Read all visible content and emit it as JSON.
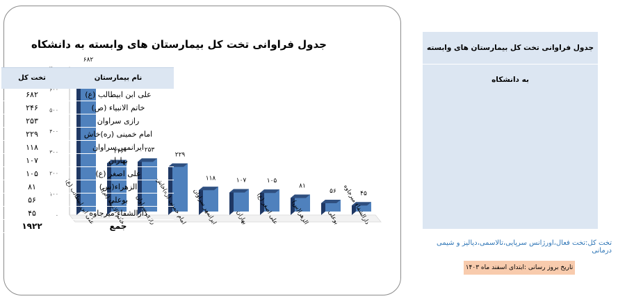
{
  "chart_data": {
    "type": "bar",
    "title": "جدول فراوانی تخت کل بیمارستان های وابسته به  دانشکاه",
    "categories": [
      "علی ابن ابیطالب (ع)",
      "خاتم الانبیاء (ص)",
      "رازی سراوان",
      "امام خمینی (ره)خاش",
      "ایرانمهر سراوان",
      "بهاران",
      "علی اصغر (ع)",
      "الزهرا(س)",
      "بوعلی",
      "دارالشفاء میرجاوه"
    ],
    "values": [
      682,
      246,
      253,
      229,
      118,
      107,
      105,
      81,
      56,
      45
    ],
    "value_labels": [
      "۶۸۲",
      "۲۴۶",
      "۲۵۳",
      "۲۲۹",
      "۱۱۸",
      "۱۰۷",
      "۱۰۵",
      "۸۱",
      "۵۶",
      "۴۵"
    ],
    "ytick_labels": [
      "۰",
      "۱۰۰",
      "۲۰۰",
      "۳۰۰",
      "۴۰۰",
      "۵۰۰",
      "۶۰۰",
      "۷۰۰"
    ],
    "ylim": [
      0,
      700
    ],
    "bar_color": "#4f81bd",
    "bar_dark_color": "#1f3864"
  },
  "table": {
    "title": "جدول فراوانی تخت کل بیمارستان های وابسته به  دانشکاه",
    "col_name": "نام بیمارستان",
    "col_beds": "تخت کل",
    "rows": [
      {
        "name": "علی ابن ابیطالب (ع)",
        "beds": "۶۸۲"
      },
      {
        "name": "خاتم الانبیاء (ص)",
        "beds": "۲۴۶"
      },
      {
        "name": "رازی سراوان",
        "beds": "۲۵۳"
      },
      {
        "name": "امام خمینی (ره)خاش",
        "beds": "۲۲۹"
      },
      {
        "name": "ایرانمهر سراوان",
        "beds": "۱۱۸"
      },
      {
        "name": "بهاران",
        "beds": "۱۰۷"
      },
      {
        "name": "علی اصغر (ع)",
        "beds": "۱۰۵"
      },
      {
        "name": "الزهراء(س)",
        "beds": "۸۱"
      },
      {
        "name": "بوعلی",
        "beds": "۵۶"
      },
      {
        "name": "دارالشفاء میرجاوه",
        "beds": "۴۵"
      }
    ],
    "total_label": "جمع",
    "total_value": "۱۹۲۲",
    "header_color": "#dce6f2"
  },
  "footnote": "تخت کل:تخت فعال،اورژانس سرپایی،تالاسمی،دیالیز و شیمی درمانی",
  "update_note": "تاریخ بروز رسانی :ابتدای اسفند ماه ۱۴۰۳"
}
